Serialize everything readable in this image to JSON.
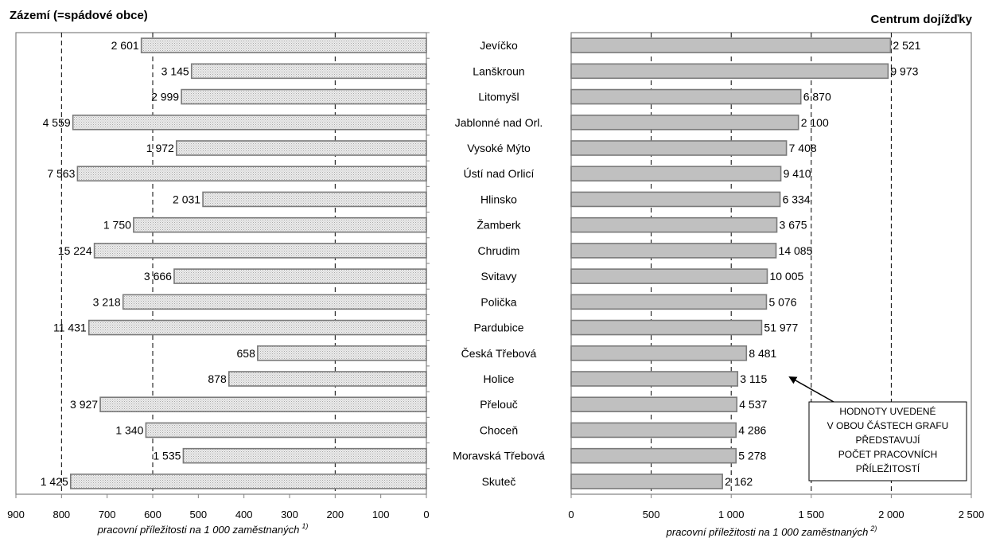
{
  "chart_data": [
    {
      "type": "bar",
      "orientation": "horizontal-reversed",
      "title": "Zázemí (=spádové obce)",
      "xlabel": "pracovní příležitosti na 1 000 zaměstnaných",
      "xlabel_sup": "1)",
      "xlim": [
        900,
        0
      ],
      "xticks": [
        "900",
        "800",
        "700",
        "600",
        "500",
        "400",
        "300",
        "200",
        "100",
        "0"
      ],
      "gridlines": [
        800,
        600,
        200
      ],
      "categories": [
        "Jevíčko",
        "Lanškroun",
        "Litomyšl",
        "Jablonné nad Orl.",
        "Vysoké Mýto",
        "Ústí nad Orlicí",
        "Hlinsko",
        "Žamberk",
        "Chrudim",
        "Svitavy",
        "Polička",
        "Pardubice",
        "Česká Třebová",
        "Holice",
        "Přelouč",
        "Choceň",
        "Moravská Třebová",
        "Skuteč"
      ],
      "values": [
        625,
        515,
        537,
        775,
        548,
        765,
        490,
        642,
        728,
        553,
        665,
        740,
        370,
        433,
        715,
        615,
        533,
        780
      ],
      "data_labels": [
        "2 601",
        "3 145",
        "2 999",
        "4 559",
        "1 972",
        "7 563",
        "2 031",
        "1 750",
        "15 224",
        "3 666",
        "3 218",
        "11 431",
        "658",
        "878",
        "3 927",
        "1 340",
        "1 535",
        "1 425"
      ],
      "bar_fill": "#e6e6e6"
    },
    {
      "type": "bar",
      "orientation": "horizontal",
      "title": "Centrum dojížďky",
      "xlabel": "pracovní příležitosti na 1 000 zaměstnaných",
      "xlabel_sup": "2)",
      "xlim": [
        0,
        2500
      ],
      "xticks": [
        "0",
        "500",
        "1 000",
        "1 500",
        "2 000",
        "2 500"
      ],
      "gridlines": [
        500,
        1000,
        1500,
        2000
      ],
      "categories": [
        "Jevíčko",
        "Lanškroun",
        "Litomyšl",
        "Jablonné nad Orl.",
        "Vysoké Mýto",
        "Ústí nad Orlicí",
        "Hlinsko",
        "Žamberk",
        "Chrudim",
        "Svitavy",
        "Polička",
        "Pardubice",
        "Česká Třebová",
        "Holice",
        "Přelouč",
        "Choceň",
        "Moravská Třebová",
        "Skuteč"
      ],
      "values": [
        1995,
        1980,
        1435,
        1420,
        1345,
        1310,
        1305,
        1285,
        1280,
        1225,
        1220,
        1190,
        1095,
        1040,
        1035,
        1030,
        1030,
        945
      ],
      "data_labels": [
        "2 521",
        "9 973",
        "6 870",
        "2 100",
        "7 408",
        "9 410",
        "6 334",
        "3 675",
        "14 085",
        "10 005",
        "5 076",
        "51 977",
        "8 481",
        "3 115",
        "4 537",
        "4 286",
        "5 278",
        "2 162"
      ],
      "bar_fill": "#c0c0c0"
    }
  ],
  "annotation": {
    "lines": [
      "HODNOTY UVEDENÉ",
      "V OBOU ČÁSTECH GRAFU",
      "PŘEDSTAVUJÍ",
      "POČET PRACOVNÍCH",
      "PŘÍLEŽITOSTÍ"
    ]
  }
}
